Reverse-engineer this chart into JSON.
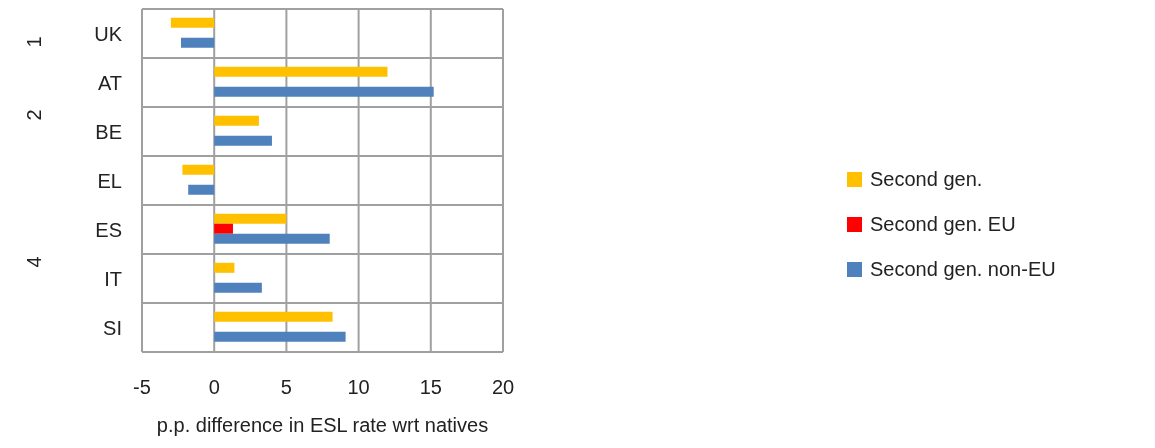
{
  "chart_data": {
    "type": "bar",
    "orientation": "horizontal",
    "xlabel": "p.p. difference in ESL rate wrt natives",
    "categories": [
      "UK",
      "AT",
      "BE",
      "EL",
      "ES",
      "IT",
      "SI"
    ],
    "series": [
      {
        "name": "Second gen.",
        "color": "#ffc000",
        "values": [
          -3.0,
          12.0,
          3.1,
          -2.2,
          5.0,
          1.4,
          8.2
        ]
      },
      {
        "name": "Second gen. EU",
        "color": "#ff0000",
        "values": [
          null,
          null,
          null,
          null,
          1.3,
          null,
          null
        ]
      },
      {
        "name": "Second gen. non-EU",
        "color": "#4f81bd",
        "values": [
          -2.3,
          15.2,
          4.0,
          -1.8,
          8.0,
          3.3,
          9.1
        ]
      }
    ],
    "xlim": [
      -5,
      20
    ],
    "xticks": [
      -5,
      0,
      5,
      10,
      15,
      20
    ],
    "grid": true,
    "legend": "right",
    "annotations": [
      "1",
      "2",
      "4"
    ]
  }
}
